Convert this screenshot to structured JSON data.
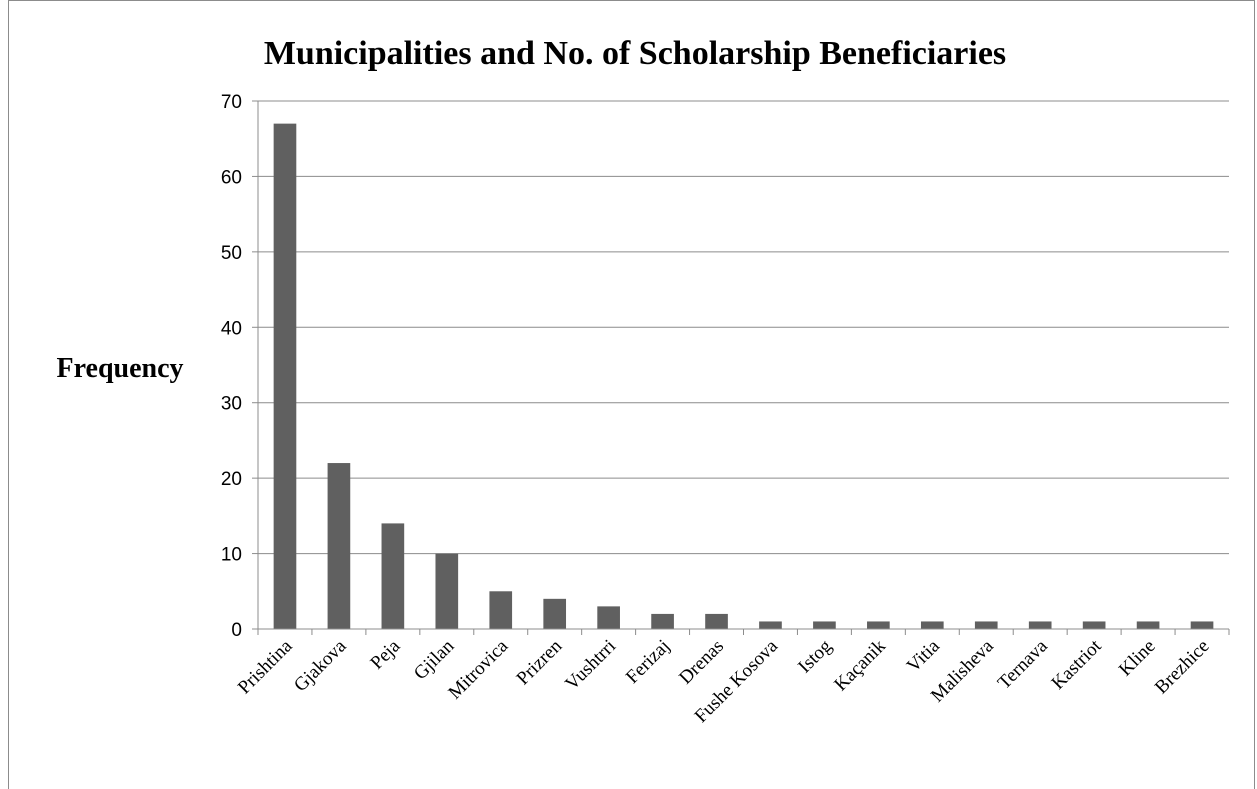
{
  "chart_data": {
    "type": "bar",
    "title": "Municipalities and No. of Scholarship Beneficiaries",
    "ylabel": "Frequency",
    "xlabel": "",
    "ylim": [
      0,
      70
    ],
    "yticks": [
      0,
      10,
      20,
      30,
      40,
      50,
      60,
      70
    ],
    "grid": true,
    "legend": "none",
    "bar_color": "#606060",
    "categories": [
      "Prishtina",
      "Gjakova",
      "Peja",
      "Gjilan",
      "Mitrovica",
      "Prizren",
      "Vushtrri",
      "Ferizaj",
      "Drenas",
      "Fushe Kosova",
      "Istog",
      "Kaçanik",
      "Vitia",
      "Malisheva",
      "Ternava",
      "Kastriot",
      "Kline",
      "Brezhice"
    ],
    "values": [
      67,
      22,
      14,
      10,
      5,
      4,
      3,
      2,
      2,
      1,
      1,
      1,
      1,
      1,
      1,
      1,
      1,
      1
    ]
  }
}
